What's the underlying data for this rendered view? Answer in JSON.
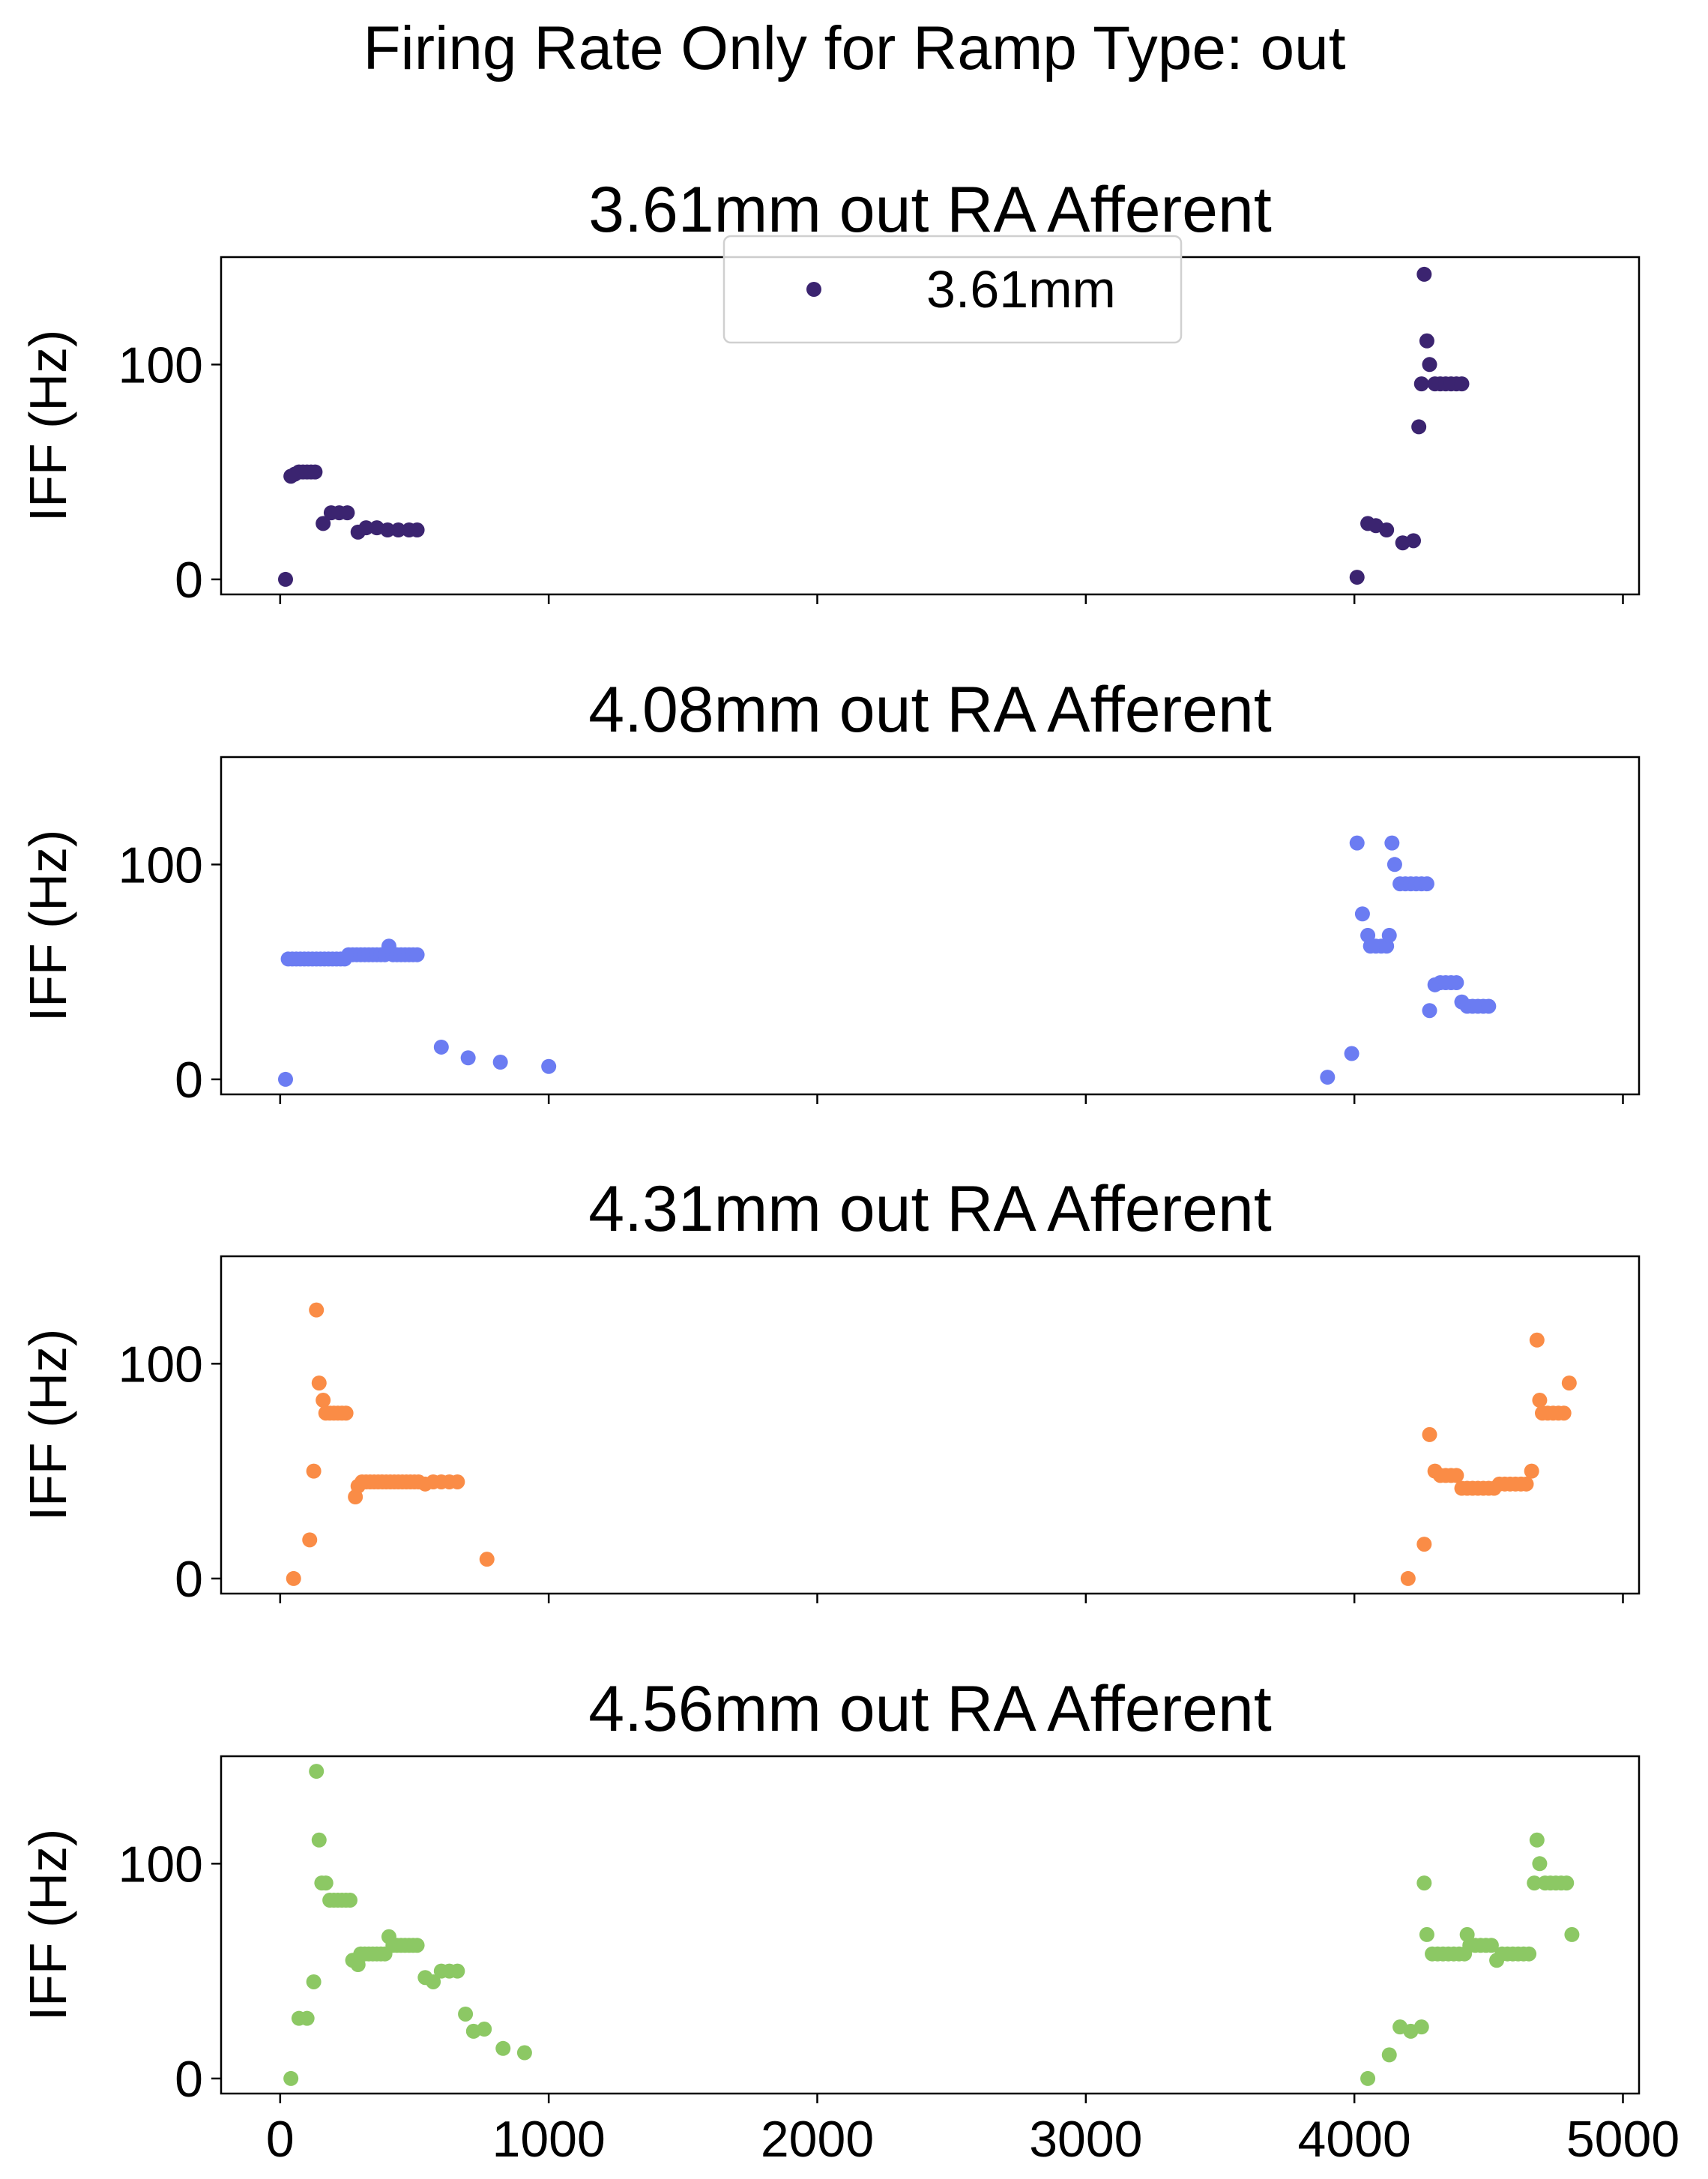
{
  "figure": {
    "suptitle": "Firing Rate Only for Ramp Type: out"
  },
  "chart_data": [
    {
      "type": "scatter",
      "title": "3.61mm out RA Afferent",
      "xlabel": "",
      "ylabel": "IFF (Hz)",
      "xlim": [
        -220,
        5060
      ],
      "ylim": [
        -7,
        150
      ],
      "yticks": [
        0,
        100
      ],
      "xticks": [
        0,
        1000,
        2000,
        3000,
        4000,
        5000
      ],
      "xticklabels_visible": false,
      "grid": false,
      "legend": {
        "position": "upper center",
        "entries": [
          "3.61mm"
        ]
      },
      "series": [
        {
          "name": "3.61mm",
          "color": "#3b2470",
          "points": [
            [
              20,
              0
            ],
            [
              40,
              48
            ],
            [
              55,
              49
            ],
            [
              70,
              50
            ],
            [
              85,
              50
            ],
            [
              100,
              50
            ],
            [
              115,
              50
            ],
            [
              130,
              50
            ],
            [
              160,
              26
            ],
            [
              190,
              31
            ],
            [
              220,
              31
            ],
            [
              250,
              31
            ],
            [
              290,
              22
            ],
            [
              320,
              24
            ],
            [
              360,
              24
            ],
            [
              400,
              23
            ],
            [
              440,
              23
            ],
            [
              480,
              23
            ],
            [
              510,
              23
            ],
            [
              4010,
              1
            ],
            [
              4050,
              26
            ],
            [
              4080,
              25
            ],
            [
              4120,
              23
            ],
            [
              4180,
              17
            ],
            [
              4220,
              18
            ],
            [
              4240,
              71
            ],
            [
              4260,
              142
            ],
            [
              4270,
              111
            ],
            [
              4280,
              100
            ],
            [
              4300,
              91
            ],
            [
              4320,
              91
            ],
            [
              4340,
              91
            ],
            [
              4360,
              91
            ],
            [
              4380,
              91
            ],
            [
              4400,
              91
            ],
            [
              4250,
              91
            ]
          ]
        }
      ]
    },
    {
      "type": "scatter",
      "title": "4.08mm out RA Afferent",
      "xlabel": "",
      "ylabel": "IFF (Hz)",
      "xlim": [
        -220,
        5060
      ],
      "ylim": [
        -7,
        150
      ],
      "yticks": [
        0,
        100
      ],
      "xticks": [
        0,
        1000,
        2000,
        3000,
        4000,
        5000
      ],
      "xticklabels_visible": false,
      "grid": false,
      "series": [
        {
          "name": "",
          "color": "#6b7cf2",
          "points": [
            [
              20,
              0
            ],
            [
              30,
              56
            ],
            [
              45,
              56
            ],
            [
              60,
              56
            ],
            [
              75,
              56
            ],
            [
              90,
              56
            ],
            [
              105,
              56
            ],
            [
              120,
              56
            ],
            [
              135,
              56
            ],
            [
              150,
              56
            ],
            [
              165,
              56
            ],
            [
              180,
              56
            ],
            [
              195,
              56
            ],
            [
              210,
              56
            ],
            [
              225,
              56
            ],
            [
              240,
              56
            ],
            [
              255,
              58
            ],
            [
              270,
              58
            ],
            [
              285,
              58
            ],
            [
              300,
              58
            ],
            [
              315,
              58
            ],
            [
              330,
              58
            ],
            [
              345,
              58
            ],
            [
              360,
              58
            ],
            [
              375,
              58
            ],
            [
              390,
              58
            ],
            [
              405,
              62
            ],
            [
              420,
              58
            ],
            [
              435,
              58
            ],
            [
              450,
              58
            ],
            [
              465,
              58
            ],
            [
              480,
              58
            ],
            [
              495,
              58
            ],
            [
              510,
              58
            ],
            [
              600,
              15
            ],
            [
              700,
              10
            ],
            [
              820,
              8
            ],
            [
              1000,
              6
            ],
            [
              3900,
              1
            ],
            [
              3990,
              12
            ],
            [
              4010,
              110
            ],
            [
              4030,
              77
            ],
            [
              4050,
              67
            ],
            [
              4060,
              62
            ],
            [
              4080,
              62
            ],
            [
              4100,
              62
            ],
            [
              4120,
              62
            ],
            [
              4130,
              67
            ],
            [
              4140,
              110
            ],
            [
              4150,
              100
            ],
            [
              4170,
              91
            ],
            [
              4190,
              91
            ],
            [
              4210,
              91
            ],
            [
              4230,
              91
            ],
            [
              4250,
              91
            ],
            [
              4270,
              91
            ],
            [
              4280,
              32
            ],
            [
              4300,
              44
            ],
            [
              4320,
              45
            ],
            [
              4340,
              45
            ],
            [
              4360,
              45
            ],
            [
              4380,
              45
            ],
            [
              4400,
              36
            ],
            [
              4420,
              34
            ],
            [
              4440,
              34
            ],
            [
              4460,
              34
            ],
            [
              4480,
              34
            ],
            [
              4500,
              34
            ]
          ]
        }
      ]
    },
    {
      "type": "scatter",
      "title": "4.31mm out RA Afferent",
      "xlabel": "",
      "ylabel": "IFF (Hz)",
      "xlim": [
        -220,
        5060
      ],
      "ylim": [
        -7,
        150
      ],
      "yticks": [
        0,
        100
      ],
      "xticks": [
        0,
        1000,
        2000,
        3000,
        4000,
        5000
      ],
      "xticklabels_visible": false,
      "grid": false,
      "series": [
        {
          "name": "",
          "color": "#fa8c46",
          "points": [
            [
              50,
              0
            ],
            [
              110,
              18
            ],
            [
              125,
              50
            ],
            [
              135,
              125
            ],
            [
              145,
              91
            ],
            [
              160,
              83
            ],
            [
              170,
              77
            ],
            [
              185,
              77
            ],
            [
              200,
              77
            ],
            [
              215,
              77
            ],
            [
              230,
              77
            ],
            [
              245,
              77
            ],
            [
              280,
              38
            ],
            [
              290,
              43
            ],
            [
              305,
              45
            ],
            [
              320,
              45
            ],
            [
              335,
              45
            ],
            [
              350,
              45
            ],
            [
              365,
              45
            ],
            [
              380,
              45
            ],
            [
              395,
              45
            ],
            [
              410,
              45
            ],
            [
              425,
              45
            ],
            [
              440,
              45
            ],
            [
              455,
              45
            ],
            [
              470,
              45
            ],
            [
              485,
              45
            ],
            [
              500,
              45
            ],
            [
              515,
              45
            ],
            [
              540,
              44
            ],
            [
              570,
              45
            ],
            [
              600,
              45
            ],
            [
              630,
              45
            ],
            [
              660,
              45
            ],
            [
              770,
              9
            ],
            [
              4200,
              0
            ],
            [
              4260,
              16
            ],
            [
              4280,
              67
            ],
            [
              4300,
              50
            ],
            [
              4320,
              48
            ],
            [
              4340,
              48
            ],
            [
              4360,
              48
            ],
            [
              4380,
              48
            ],
            [
              4400,
              42
            ],
            [
              4420,
              42
            ],
            [
              4440,
              42
            ],
            [
              4460,
              42
            ],
            [
              4480,
              42
            ],
            [
              4500,
              42
            ],
            [
              4520,
              42
            ],
            [
              4540,
              44
            ],
            [
              4560,
              44
            ],
            [
              4580,
              44
            ],
            [
              4600,
              44
            ],
            [
              4620,
              44
            ],
            [
              4640,
              44
            ],
            [
              4660,
              50
            ],
            [
              4680,
              111
            ],
            [
              4690,
              83
            ],
            [
              4700,
              77
            ],
            [
              4720,
              77
            ],
            [
              4740,
              77
            ],
            [
              4760,
              77
            ],
            [
              4780,
              77
            ],
            [
              4800,
              91
            ]
          ]
        }
      ]
    },
    {
      "type": "scatter",
      "title": "4.56mm out RA Afferent",
      "xlabel": "",
      "ylabel": "IFF (Hz)",
      "xlim": [
        -220,
        5060
      ],
      "ylim": [
        -7,
        150
      ],
      "yticks": [
        0,
        100
      ],
      "xticks": [
        0,
        1000,
        2000,
        3000,
        4000,
        5000
      ],
      "xticklabels": [
        "0",
        "1000",
        "2000",
        "3000",
        "4000",
        "5000"
      ],
      "xticklabels_visible": true,
      "grid": false,
      "series": [
        {
          "name": "",
          "color": "#8cc864",
          "points": [
            [
              40,
              0
            ],
            [
              70,
              28
            ],
            [
              100,
              28
            ],
            [
              125,
              45
            ],
            [
              135,
              143
            ],
            [
              145,
              111
            ],
            [
              155,
              91
            ],
            [
              170,
              91
            ],
            [
              185,
              83
            ],
            [
              200,
              83
            ],
            [
              215,
              83
            ],
            [
              230,
              83
            ],
            [
              245,
              83
            ],
            [
              260,
              83
            ],
            [
              270,
              55
            ],
            [
              290,
              53
            ],
            [
              300,
              58
            ],
            [
              315,
              58
            ],
            [
              330,
              58
            ],
            [
              345,
              58
            ],
            [
              360,
              58
            ],
            [
              375,
              58
            ],
            [
              390,
              58
            ],
            [
              405,
              66
            ],
            [
              420,
              62
            ],
            [
              435,
              62
            ],
            [
              450,
              62
            ],
            [
              465,
              62
            ],
            [
              480,
              62
            ],
            [
              495,
              62
            ],
            [
              510,
              62
            ],
            [
              540,
              47
            ],
            [
              570,
              45
            ],
            [
              600,
              50
            ],
            [
              630,
              50
            ],
            [
              660,
              50
            ],
            [
              690,
              30
            ],
            [
              720,
              22
            ],
            [
              760,
              23
            ],
            [
              830,
              14
            ],
            [
              910,
              12
            ],
            [
              4050,
              0
            ],
            [
              4130,
              11
            ],
            [
              4170,
              24
            ],
            [
              4210,
              22
            ],
            [
              4250,
              24
            ],
            [
              4260,
              91
            ],
            [
              4270,
              67
            ],
            [
              4290,
              58
            ],
            [
              4310,
              58
            ],
            [
              4330,
              58
            ],
            [
              4350,
              58
            ],
            [
              4370,
              58
            ],
            [
              4390,
              58
            ],
            [
              4410,
              58
            ],
            [
              4420,
              67
            ],
            [
              4430,
              62
            ],
            [
              4450,
              62
            ],
            [
              4470,
              62
            ],
            [
              4490,
              62
            ],
            [
              4510,
              62
            ],
            [
              4530,
              55
            ],
            [
              4550,
              58
            ],
            [
              4570,
              58
            ],
            [
              4590,
              58
            ],
            [
              4610,
              58
            ],
            [
              4630,
              58
            ],
            [
              4650,
              58
            ],
            [
              4670,
              91
            ],
            [
              4680,
              111
            ],
            [
              4690,
              100
            ],
            [
              4710,
              91
            ],
            [
              4730,
              91
            ],
            [
              4750,
              91
            ],
            [
              4770,
              91
            ],
            [
              4790,
              91
            ],
            [
              4810,
              67
            ]
          ]
        }
      ]
    }
  ]
}
